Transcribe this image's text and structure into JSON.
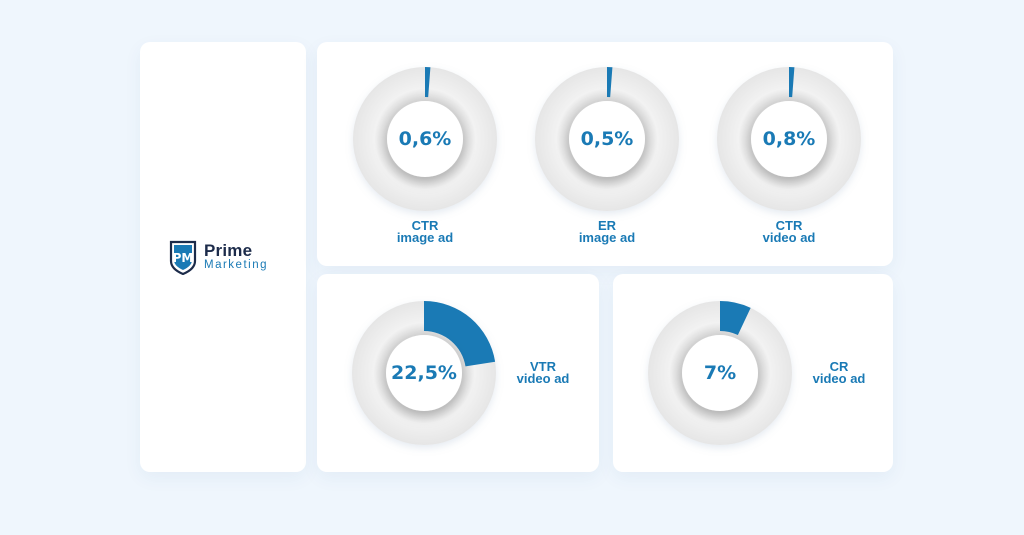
{
  "brand": {
    "name": "Prime",
    "sub": "Marketing",
    "mark": "PM",
    "color": "#1a7ab5",
    "dark": "#1c2b4a"
  },
  "chart_data": [
    {
      "type": "pie",
      "value_label": "0,6%",
      "fraction": 0.006,
      "label_line1": "CTR",
      "label_line2": "image ad"
    },
    {
      "type": "pie",
      "value_label": "0,5%",
      "fraction": 0.005,
      "label_line1": "ER",
      "label_line2": "image ad"
    },
    {
      "type": "pie",
      "value_label": "0,8%",
      "fraction": 0.008,
      "label_line1": "CTR",
      "label_line2": "video ad"
    },
    {
      "type": "pie",
      "value_label": "22,5%",
      "fraction": 0.225,
      "label_line1": "VTR",
      "label_line2": "video ad"
    },
    {
      "type": "pie",
      "value_label": "7%",
      "fraction": 0.07,
      "label_line1": "CR",
      "label_line2": "video ad"
    }
  ],
  "colors": {
    "accent": "#1a7ab5",
    "ring": "#ececec",
    "background": "#eff6fd"
  }
}
